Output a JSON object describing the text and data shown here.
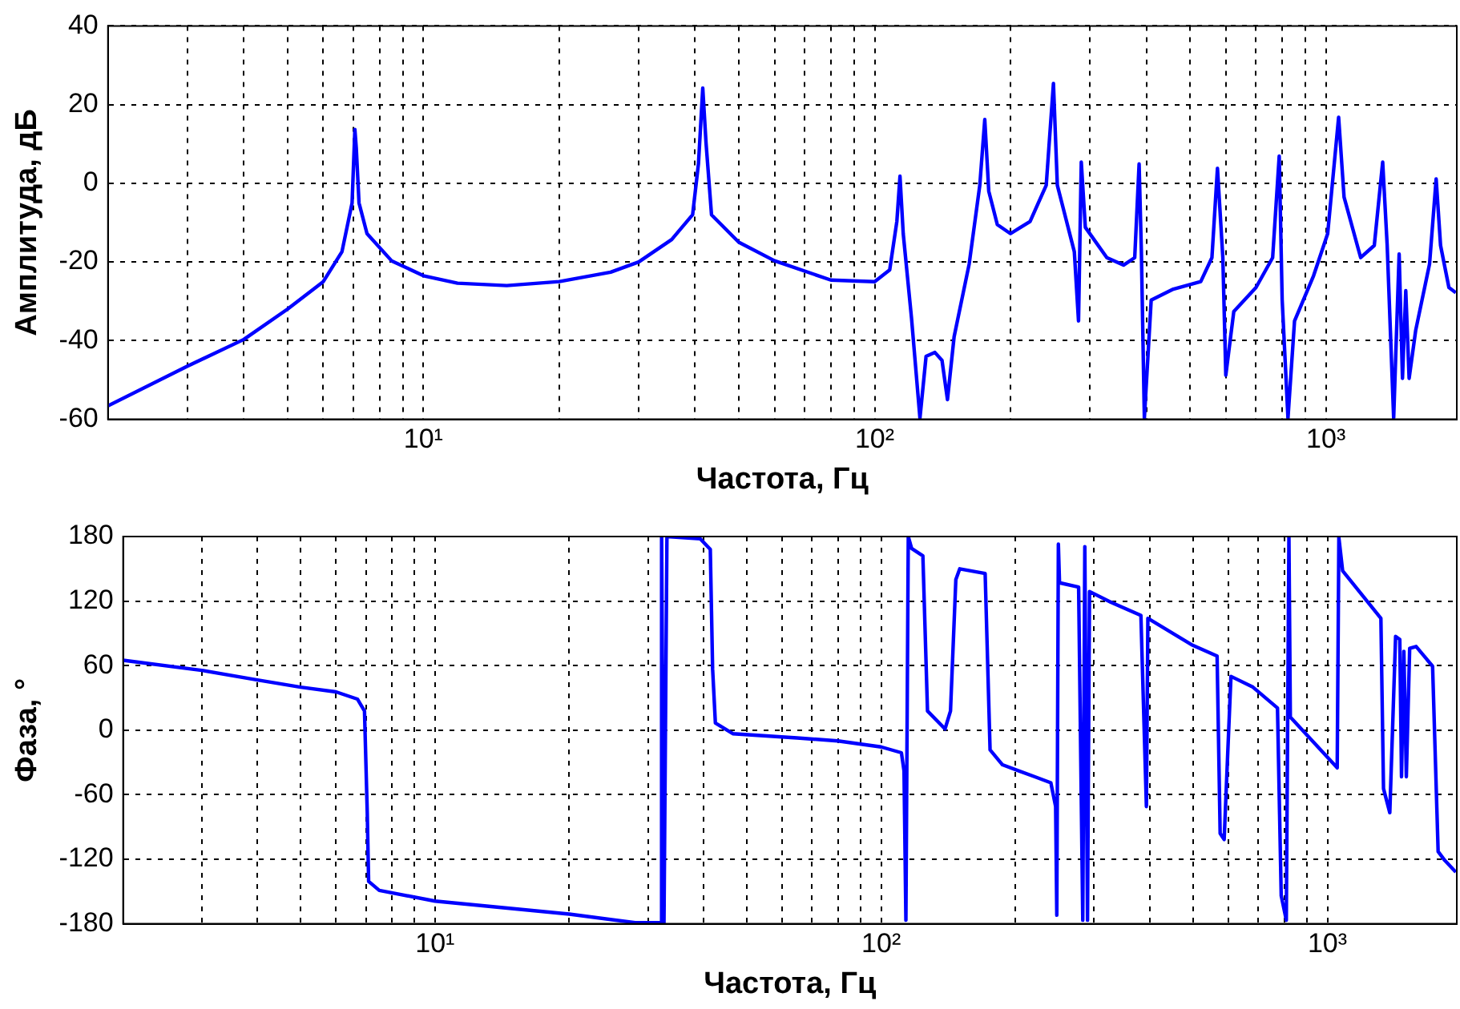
{
  "chart_data": [
    {
      "type": "line",
      "xlabel": "Частота, Гц",
      "ylabel": "Амплитуда, дБ",
      "log": "x",
      "grid": true,
      "xlim": [
        2,
        1950
      ],
      "ylim": [
        -60,
        40
      ],
      "xticks": [
        {
          "value": 2,
          "label": null
        },
        {
          "value": 3,
          "label": null
        },
        {
          "value": 4,
          "label": null
        },
        {
          "value": 5,
          "label": null
        },
        {
          "value": 6,
          "label": null
        },
        {
          "value": 7,
          "label": null
        },
        {
          "value": 8,
          "label": null
        },
        {
          "value": 9,
          "label": null
        },
        {
          "value": 10,
          "label": "10¹"
        },
        {
          "value": 20,
          "label": null
        },
        {
          "value": 30,
          "label": null
        },
        {
          "value": 40,
          "label": null
        },
        {
          "value": 50,
          "label": null
        },
        {
          "value": 60,
          "label": null
        },
        {
          "value": 70,
          "label": null
        },
        {
          "value": 80,
          "label": null
        },
        {
          "value": 90,
          "label": null
        },
        {
          "value": 100,
          "label": "10²"
        },
        {
          "value": 200,
          "label": null
        },
        {
          "value": 300,
          "label": null
        },
        {
          "value": 400,
          "label": null
        },
        {
          "value": 500,
          "label": null
        },
        {
          "value": 600,
          "label": null
        },
        {
          "value": 700,
          "label": null
        },
        {
          "value": 800,
          "label": null
        },
        {
          "value": 900,
          "label": null
        },
        {
          "value": 1000,
          "label": "10³"
        }
      ],
      "yticks": [
        -60,
        -40,
        -20,
        0,
        20,
        40
      ],
      "series": [
        {
          "color": "#0000ff",
          "x": [
            2,
            3,
            4,
            5,
            6,
            6.6,
            6.95,
            7.05,
            7.1,
            7.2,
            7.5,
            8.5,
            10,
            11.9,
            15.3,
            20,
            26,
            30,
            35.5,
            39.5,
            40.7,
            41.6,
            42.3,
            43.5,
            50,
            60,
            80,
            100,
            108,
            112,
            113.8,
            115.7,
            120.7,
            126,
            130,
            136,
            141,
            145,
            150,
            162,
            171,
            175.4,
            179,
            187,
            200,
            221,
            240,
            249,
            254,
            277,
            283,
            287,
            293,
            327,
            356,
            377,
            385.5,
            390,
            396,
            410,
            459,
            528,
            559,
            575,
            591,
            600,
            625,
            700,
            762,
            788,
            800,
            824,
            852,
            939,
            1009,
            1067,
            1097,
            1194,
            1280,
            1336,
            1367,
            1413,
            1453,
            1478,
            1503,
            1529,
            1581,
            1697,
            1755,
            1795,
            1873,
            1940
          ],
          "values": [
            -56.6,
            -46.5,
            -39.7,
            -32,
            -25,
            -17.4,
            -5,
            13.7,
            9,
            -5,
            -12.8,
            -19.7,
            -23.5,
            -25.4,
            -26,
            -25,
            -22.6,
            -20,
            -14.3,
            -8,
            5,
            24.2,
            10.3,
            -8,
            -15,
            -19.7,
            -24.6,
            -25,
            -22,
            -9.7,
            1.8,
            -12.8,
            -34.3,
            -59.7,
            -44,
            -43,
            -45,
            -55,
            -39,
            -20.5,
            -0.5,
            16.2,
            -2,
            -10.5,
            -12.8,
            -9.7,
            -0.5,
            25.4,
            -0.5,
            -17.4,
            -35,
            5.4,
            -11.2,
            -18.9,
            -20.8,
            -18.9,
            4.9,
            -17.4,
            -59.7,
            -29.7,
            -26.9,
            -25,
            -18.9,
            3.8,
            -18.9,
            -48.8,
            -32.6,
            -26.5,
            -18.9,
            6.9,
            -29.7,
            -59.7,
            -35,
            -23.5,
            -12.8,
            16.8,
            -3.5,
            -18.9,
            -15.8,
            5.4,
            -15.8,
            -59.7,
            -18,
            -49.6,
            -27.3,
            -49.6,
            -37.4,
            -20.5,
            1.1,
            -15.8,
            -26.5,
            -27.8
          ]
        }
      ]
    },
    {
      "type": "line",
      "xlabel": "Частота, Гц",
      "ylabel": "Фаза, °",
      "log": "x",
      "grid": true,
      "xlim": [
        2,
        1950
      ],
      "ylim": [
        -180,
        180
      ],
      "xticks": [
        {
          "value": 2,
          "label": null
        },
        {
          "value": 3,
          "label": null
        },
        {
          "value": 4,
          "label": null
        },
        {
          "value": 5,
          "label": null
        },
        {
          "value": 6,
          "label": null
        },
        {
          "value": 7,
          "label": null
        },
        {
          "value": 8,
          "label": null
        },
        {
          "value": 9,
          "label": null
        },
        {
          "value": 10,
          "label": "10¹"
        },
        {
          "value": 20,
          "label": null
        },
        {
          "value": 30,
          "label": null
        },
        {
          "value": 40,
          "label": null
        },
        {
          "value": 50,
          "label": null
        },
        {
          "value": 60,
          "label": null
        },
        {
          "value": 70,
          "label": null
        },
        {
          "value": 80,
          "label": null
        },
        {
          "value": 90,
          "label": null
        },
        {
          "value": 100,
          "label": "10²"
        },
        {
          "value": 200,
          "label": null
        },
        {
          "value": 300,
          "label": null
        },
        {
          "value": 400,
          "label": null
        },
        {
          "value": 500,
          "label": null
        },
        {
          "value": 600,
          "label": null
        },
        {
          "value": 700,
          "label": null
        },
        {
          "value": 800,
          "label": null
        },
        {
          "value": 900,
          "label": null
        },
        {
          "value": 1000,
          "label": "10³"
        }
      ],
      "yticks": [
        -180,
        -120,
        -60,
        0,
        60,
        120,
        180
      ],
      "series": [
        {
          "color": "#0000ff",
          "x": [
            2,
            3,
            4,
            5,
            6,
            6.7,
            6.95,
            7.05,
            7.1,
            7.5,
            10,
            20,
            28.1,
            32,
            32.2,
            32.6,
            33.1,
            39.3,
            41.4,
            41.9,
            42.5,
            46.5,
            64.8,
            80,
            100,
            111,
            112.5,
            113.6,
            115,
            117,
            124,
            127,
            139,
            143,
            147,
            150,
            171,
            175.4,
            187,
            221,
            240,
            246,
            247.5,
            249.5,
            251,
            277,
            283,
            286,
            290,
            293,
            327,
            382,
            393,
            396,
            499,
            566,
            575,
            587,
            598,
            608,
            681,
            773,
            788,
            809,
            820,
            826,
            1052,
            1061,
            1082,
            1318,
            1336,
            1380,
            1422,
            1453,
            1466,
            1484,
            1503,
            1529,
            1581,
            1721,
            1771,
            1832,
            1940
          ],
          "values": [
            65,
            55.6,
            46.7,
            40,
            35.6,
            28.9,
            17.8,
            -76.7,
            -140.6,
            -148.9,
            -158.9,
            -171,
            -178.9,
            -178.9,
            180,
            -179,
            180,
            178,
            168,
            56.7,
            6.7,
            -3.3,
            -7.2,
            -10,
            -15.6,
            -21,
            -37.8,
            -176.7,
            180,
            168.9,
            162,
            17.8,
            1.1,
            17.8,
            140,
            150,
            145.6,
            -18.3,
            -32.2,
            -43.3,
            -48.9,
            -71,
            -172,
            173,
            137,
            133,
            -176.7,
            170.6,
            -176.7,
            128.9,
            118.9,
            106.7,
            -71,
            104,
            78.9,
            68.9,
            -96,
            -101.7,
            -21,
            50,
            40,
            20.6,
            -154,
            -176.7,
            180,
            12.2,
            -35,
            179,
            148,
            104,
            -54.4,
            -76.7,
            87.2,
            84.4,
            -43.3,
            73.3,
            -43.3,
            76,
            77.8,
            59.4,
            -112.8,
            -121,
            -132
          ]
        }
      ]
    }
  ]
}
